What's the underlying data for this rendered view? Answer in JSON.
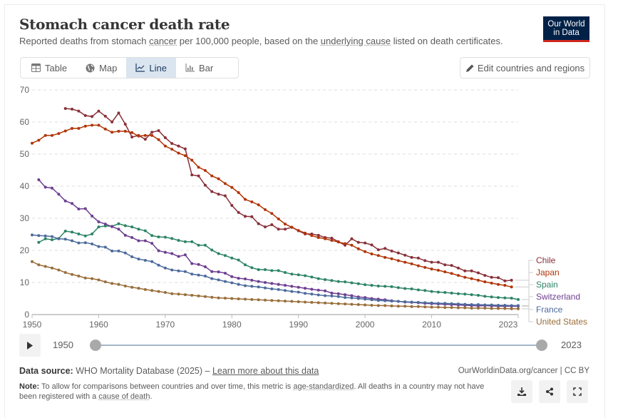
{
  "header": {
    "title": "Stomach cancer death rate",
    "subtitle_parts": [
      "Reported deaths from stomach ",
      "cancer",
      " per 100,000 people, based on the ",
      "underlying cause",
      " listed on death certificates."
    ],
    "logo_line1": "Our World",
    "logo_line2": "in Data"
  },
  "tabs": [
    {
      "label": "Table",
      "icon": "table-icon",
      "active": false
    },
    {
      "label": "Map",
      "icon": "globe-icon",
      "active": false
    },
    {
      "label": "Line",
      "icon": "line-chart-icon",
      "active": true
    },
    {
      "label": "Bar",
      "icon": "bar-chart-icon",
      "active": false
    }
  ],
  "edit_button": {
    "label": "Edit countries and regions",
    "icon": "pencil-icon"
  },
  "timeline": {
    "start": "1950",
    "end": "2023",
    "play_icon": "play-icon"
  },
  "footer": {
    "source_label": "Data source:",
    "source_text": " WHO Mortality Database (2025) – ",
    "source_link": "Learn more about this data",
    "attribution": "OurWorldinData.org/cancer | CC BY",
    "note_label": "Note:",
    "note_parts": [
      " To allow for comparisons between countries and over time, this metric is ",
      "age-standardized",
      ". All deaths in a country may not have been registered with a ",
      "cause of death",
      "."
    ],
    "actions": [
      "download-icon",
      "share-icon",
      "fullscreen-icon"
    ]
  },
  "chart_data": {
    "type": "line",
    "title": "Stomach cancer death rate",
    "xlabel": "",
    "ylabel": "",
    "xlim": [
      1950,
      2023
    ],
    "ylim": [
      0,
      70
    ],
    "yticks": [
      0,
      10,
      20,
      30,
      40,
      50,
      60,
      70
    ],
    "xticks": [
      1950,
      1960,
      1970,
      1980,
      1990,
      2000,
      2010,
      2023
    ],
    "grid": true,
    "legend_position": "right",
    "series": [
      {
        "name": "Chile",
        "color": "#883039",
        "start": 1955,
        "values": [
          64.2,
          64.0,
          63.4,
          62.0,
          61.7,
          63.4,
          61.8,
          60.0,
          62.8,
          59.3,
          55.3,
          55.8,
          54.6,
          56.8,
          57.3,
          55.1,
          53.3,
          52.5,
          51.6,
          43.5,
          43.2,
          40.3,
          38.3,
          37.5,
          37.0,
          34.0,
          31.8,
          30.6,
          30.5,
          28.3,
          27.3,
          28.0,
          26.6,
          26.6,
          27.2,
          26.1,
          25.1,
          25.1,
          24.7,
          24.0,
          23.8,
          22.7,
          21.6,
          23.6,
          22.5,
          22.3,
          21.7,
          20.2,
          20.6,
          19.8,
          19.2,
          18.5,
          17.8,
          17.6,
          16.8,
          16.3,
          16.3,
          15.5,
          15.3,
          14.5,
          13.6,
          13.6,
          13.0,
          12.2,
          11.6,
          11.5,
          10.5,
          10.7
        ]
      },
      {
        "name": "Japan",
        "color": "#b13507",
        "start": 1950,
        "values": [
          53.4,
          54.3,
          55.8,
          55.8,
          56.4,
          57.2,
          58.0,
          58.0,
          58.7,
          59.0,
          59.0,
          57.8,
          56.8,
          57.1,
          57.1,
          56.7,
          55.6,
          55.8,
          55.8,
          54.5,
          52.5,
          51.5,
          50.3,
          49.5,
          48.1,
          45.9,
          44.9,
          43.2,
          42.3,
          40.8,
          39.6,
          38.0,
          35.9,
          35.1,
          34.2,
          32.7,
          31.5,
          29.8,
          28.2,
          27.2,
          26.2,
          25.4,
          24.6,
          24.0,
          23.6,
          23.1,
          22.6,
          22.1,
          21.6,
          20.5,
          19.6,
          18.9,
          18.4,
          17.8,
          17.4,
          16.8,
          16.3,
          15.8,
          15.2,
          14.7,
          14.2,
          13.8,
          13.3,
          12.8,
          12.2,
          11.6,
          11.2,
          10.7,
          10.2,
          9.8,
          9.4,
          9.1,
          8.6
        ]
      },
      {
        "name": "Spain",
        "color": "#2c8465",
        "start": 1951,
        "values": [
          22.5,
          23.6,
          23.3,
          23.7,
          26.0,
          25.7,
          25.1,
          24.5,
          25.1,
          27.3,
          27.6,
          27.5,
          28.3,
          27.7,
          27.3,
          26.6,
          26.1,
          24.6,
          24.2,
          24.1,
          23.7,
          23.1,
          22.7,
          22.7,
          21.6,
          21.6,
          20.1,
          19.0,
          18.4,
          17.6,
          17.0,
          15.5,
          14.6,
          14.0,
          14.0,
          13.7,
          13.7,
          13.1,
          12.6,
          12.4,
          12.1,
          11.7,
          11.2,
          10.9,
          10.6,
          10.3,
          10.2,
          9.9,
          9.6,
          9.3,
          9.1,
          8.9,
          8.8,
          8.7,
          8.4,
          8.1,
          8.0,
          7.7,
          7.5,
          7.2,
          7.0,
          6.9,
          6.7,
          6.5,
          6.4,
          6.2,
          6.0,
          5.7,
          5.5,
          5.3,
          5.2,
          5.1,
          4.7
        ]
      },
      {
        "name": "Switzerland",
        "color": "#6d3e91",
        "start": 1951,
        "values": [
          42.0,
          39.7,
          39.4,
          37.5,
          35.4,
          34.6,
          32.9,
          33.0,
          30.7,
          28.9,
          28.2,
          27.4,
          26.6,
          24.7,
          24.0,
          23.0,
          23.0,
          22.2,
          19.9,
          19.4,
          19.0,
          18.1,
          18.6,
          15.9,
          15.6,
          14.9,
          13.4,
          13.3,
          12.9,
          11.8,
          11.3,
          11.1,
          10.7,
          10.3,
          10.0,
          9.7,
          9.4,
          9.1,
          8.8,
          8.5,
          8.2,
          7.9,
          7.6,
          7.4,
          6.7,
          6.5,
          6.2,
          5.9,
          5.5,
          5.3,
          5.0,
          4.8,
          4.6,
          4.3,
          4.1,
          3.9,
          3.8,
          3.7,
          3.5,
          3.4,
          3.3,
          3.2,
          3.1,
          3.0,
          2.9,
          2.8,
          2.7,
          2.8,
          2.7,
          2.6,
          2.6,
          2.6,
          2.6
        ]
      },
      {
        "name": "France",
        "color": "#4c6a9c",
        "start": 1950,
        "values": [
          24.8,
          24.6,
          24.5,
          24.3,
          23.6,
          23.5,
          23.0,
          22.3,
          22.4,
          22.0,
          21.2,
          21.0,
          19.8,
          19.8,
          19.2,
          18.0,
          17.3,
          16.9,
          16.5,
          15.4,
          14.5,
          13.9,
          13.6,
          13.4,
          12.6,
          12.3,
          12.0,
          11.2,
          10.8,
          10.3,
          9.9,
          9.4,
          9.0,
          8.8,
          8.6,
          8.3,
          8.0,
          7.8,
          7.5,
          7.2,
          7.0,
          6.6,
          6.4,
          6.1,
          5.9,
          5.8,
          5.6,
          5.3,
          5.2,
          5.0,
          4.8,
          4.6,
          4.4,
          4.3,
          4.2,
          4.1,
          4.0,
          3.9,
          3.8,
          3.7,
          3.6,
          3.5,
          3.5,
          3.4,
          3.3,
          3.2,
          3.1,
          3.1,
          3.0,
          3.0,
          2.9,
          2.9,
          2.8,
          2.8
        ]
      },
      {
        "name": "United States",
        "color": "#996d39",
        "start": 1950,
        "values": [
          16.5,
          15.5,
          15.0,
          14.5,
          13.9,
          13.1,
          12.5,
          12.0,
          11.4,
          11.2,
          10.8,
          10.2,
          9.7,
          9.4,
          8.9,
          8.5,
          8.2,
          7.8,
          7.5,
          7.2,
          6.9,
          6.5,
          6.4,
          6.2,
          6.0,
          5.8,
          5.6,
          5.4,
          5.2,
          5.1,
          5.0,
          4.9,
          4.8,
          4.7,
          4.6,
          4.5,
          4.4,
          4.3,
          4.2,
          4.1,
          4.0,
          3.9,
          3.8,
          3.7,
          3.6,
          3.5,
          3.4,
          3.3,
          3.2,
          3.1,
          3.0,
          2.9,
          2.8,
          2.8,
          2.7,
          2.6,
          2.6,
          2.5,
          2.5,
          2.4,
          2.3,
          2.3,
          2.2,
          2.2,
          2.1,
          2.1,
          2.0,
          2.0,
          2.0,
          1.9,
          1.9,
          1.9,
          1.8,
          1.8
        ]
      }
    ]
  }
}
